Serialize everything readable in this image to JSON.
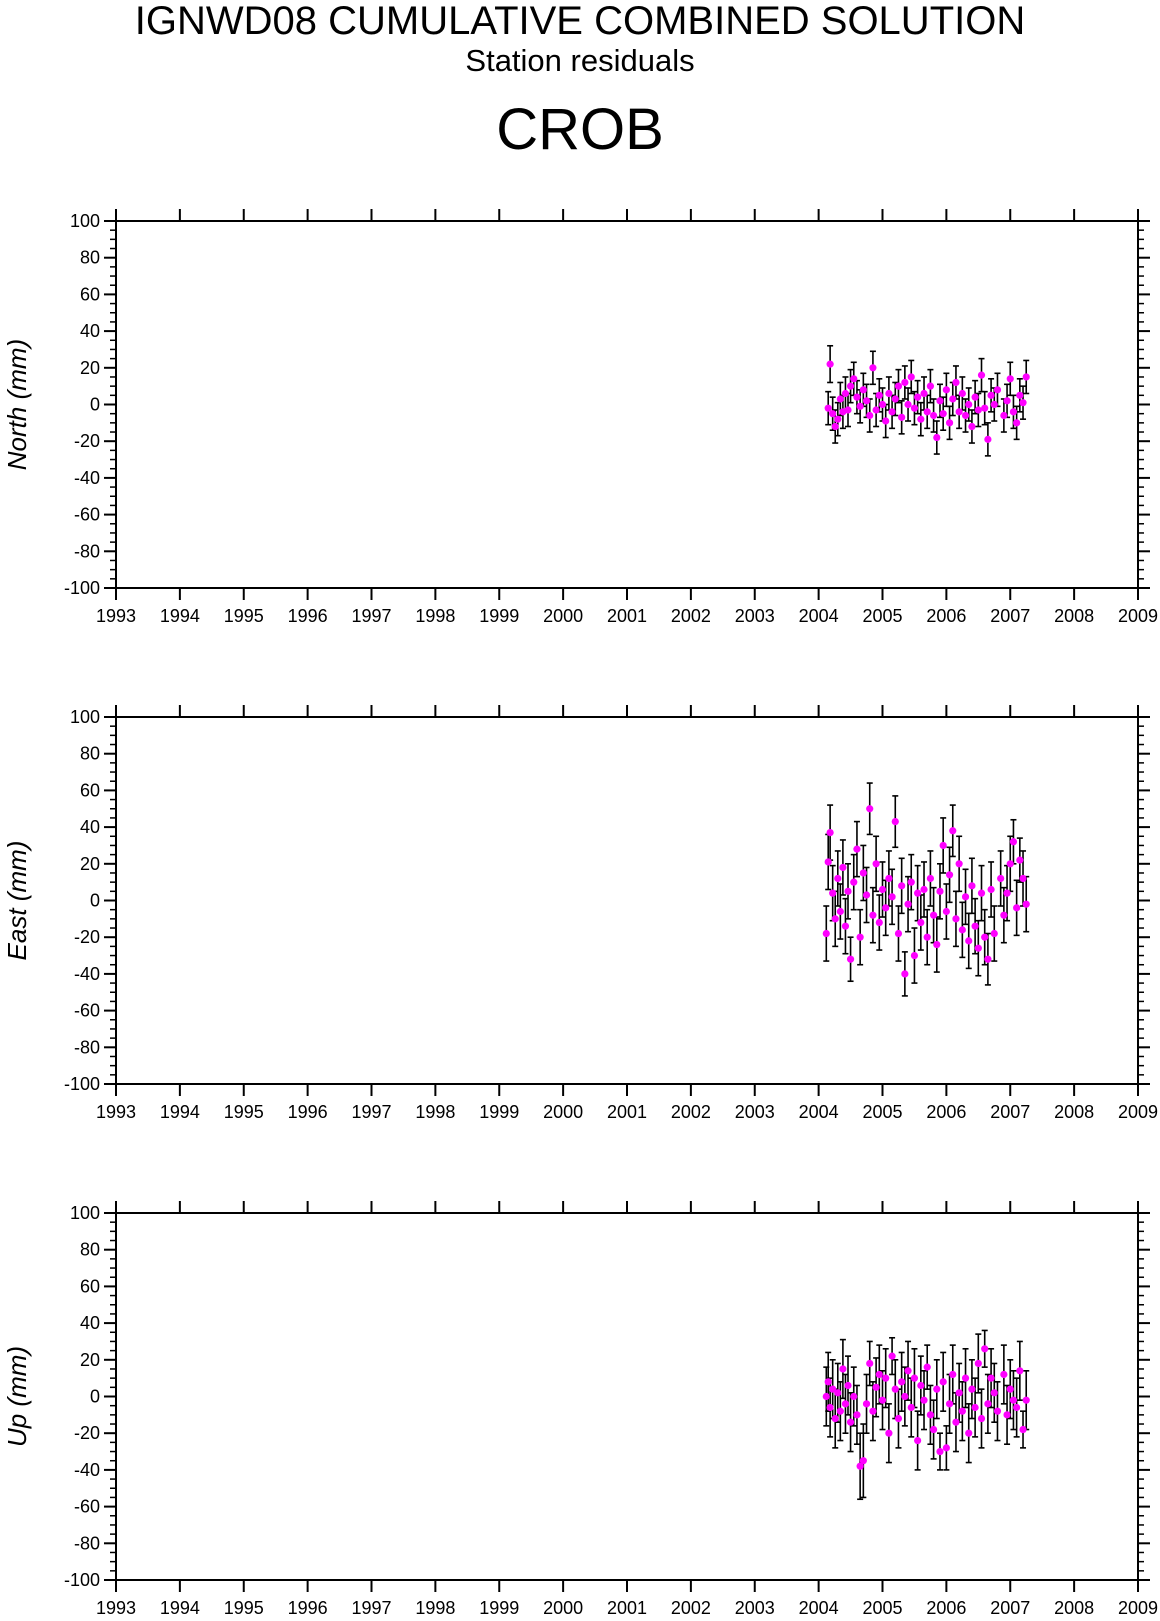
{
  "header": {
    "title": "IGNWD08 CUMULATIVE COMBINED SOLUTION",
    "subtitle": "Station residuals",
    "station": "CROB"
  },
  "colors": {
    "marker": "#ff00ff",
    "errorbar": "#000000",
    "axes": "#000000"
  },
  "chart_data": [
    {
      "type": "scatter",
      "component": "north",
      "ylabel": "North (mm)",
      "xlim": [
        1993,
        2009
      ],
      "ylim": [
        -100,
        100
      ],
      "x_ticks": [
        "1993",
        "1994",
        "1995",
        "1996",
        "1997",
        "1998",
        "1999",
        "2000",
        "2001",
        "2002",
        "2003",
        "2004",
        "2005",
        "2006",
        "2007",
        "2008",
        "2009"
      ],
      "y_ticks": [
        "100",
        "80",
        "60",
        "40",
        "20",
        "0",
        "-20",
        "-40",
        "-60",
        "-80",
        "-100"
      ],
      "errorbars": true,
      "grid": false,
      "series": [
        {
          "x": [
            2004.15,
            2004.18,
            2004.22,
            2004.26,
            2004.3,
            2004.34,
            2004.38,
            2004.42,
            2004.46,
            2004.5,
            2004.55,
            2004.6,
            2004.65,
            2004.7,
            2004.75,
            2004.8,
            2004.85,
            2004.9,
            2004.95,
            2005.0,
            2005.05,
            2005.1,
            2005.15,
            2005.2,
            2005.25,
            2005.3,
            2005.35,
            2005.4,
            2005.45,
            2005.5,
            2005.55,
            2005.6,
            2005.65,
            2005.7,
            2005.75,
            2005.8,
            2005.85,
            2005.9,
            2005.95,
            2006.0,
            2006.05,
            2006.1,
            2006.15,
            2006.2,
            2006.25,
            2006.3,
            2006.35,
            2006.4,
            2006.45,
            2006.5,
            2006.55,
            2006.6,
            2006.65,
            2006.7,
            2006.75,
            2006.8,
            2006.9,
            2006.95,
            2007.0,
            2007.05,
            2007.1,
            2007.15,
            2007.2,
            2007.25
          ],
          "y": [
            -2,
            22,
            -5,
            -12,
            -8,
            3,
            -4,
            6,
            -3,
            10,
            14,
            4,
            -1,
            8,
            2,
            -6,
            20,
            -3,
            5,
            0,
            -9,
            6,
            -4,
            3,
            10,
            -7,
            12,
            0,
            15,
            -2,
            4,
            -8,
            6,
            -4,
            10,
            -6,
            -18,
            2,
            -5,
            8,
            -10,
            3,
            12,
            -4,
            6,
            -6,
            0,
            -12,
            4,
            -3,
            16,
            -2,
            -19,
            5,
            0,
            8,
            -6,
            2,
            14,
            -4,
            -10,
            5,
            1,
            15
          ],
          "err": [
            9,
            10,
            9,
            9,
            9,
            9,
            9,
            9,
            9,
            9,
            9,
            9,
            9,
            9,
            9,
            9,
            9,
            9,
            9,
            9,
            9,
            9,
            9,
            9,
            9,
            9,
            9,
            9,
            9,
            9,
            9,
            9,
            9,
            9,
            9,
            9,
            9,
            9,
            9,
            9,
            9,
            9,
            9,
            9,
            9,
            9,
            9,
            9,
            9,
            9,
            9,
            9,
            9,
            9,
            9,
            9,
            9,
            9,
            9,
            9,
            9,
            9,
            9,
            9
          ]
        }
      ]
    },
    {
      "type": "scatter",
      "component": "east",
      "ylabel": "East (mm)",
      "xlim": [
        1993,
        2009
      ],
      "ylim": [
        -100,
        100
      ],
      "x_ticks": [
        "1993",
        "1994",
        "1995",
        "1996",
        "1997",
        "1998",
        "1999",
        "2000",
        "2001",
        "2002",
        "2003",
        "2004",
        "2005",
        "2006",
        "2007",
        "2008",
        "2009"
      ],
      "y_ticks": [
        "100",
        "80",
        "60",
        "40",
        "20",
        "0",
        "-20",
        "-40",
        "-60",
        "-80",
        "-100"
      ],
      "errorbars": true,
      "grid": false,
      "series": [
        {
          "x": [
            2004.12,
            2004.15,
            2004.18,
            2004.22,
            2004.26,
            2004.3,
            2004.34,
            2004.38,
            2004.42,
            2004.46,
            2004.5,
            2004.55,
            2004.6,
            2004.65,
            2004.7,
            2004.75,
            2004.8,
            2004.85,
            2004.9,
            2004.95,
            2005.0,
            2005.05,
            2005.1,
            2005.15,
            2005.2,
            2005.25,
            2005.3,
            2005.35,
            2005.4,
            2005.45,
            2005.5,
            2005.55,
            2005.6,
            2005.65,
            2005.7,
            2005.75,
            2005.8,
            2005.85,
            2005.9,
            2005.95,
            2006.0,
            2006.05,
            2006.1,
            2006.15,
            2006.2,
            2006.25,
            2006.3,
            2006.35,
            2006.4,
            2006.45,
            2006.5,
            2006.55,
            2006.6,
            2006.65,
            2006.7,
            2006.75,
            2006.85,
            2006.9,
            2006.95,
            2007.0,
            2007.05,
            2007.1,
            2007.15,
            2007.2,
            2007.25
          ],
          "y": [
            -18,
            21,
            37,
            4,
            -10,
            12,
            -6,
            18,
            -14,
            5,
            -32,
            10,
            28,
            -20,
            15,
            3,
            50,
            -8,
            20,
            -12,
            6,
            -4,
            12,
            2,
            43,
            -18,
            8,
            -40,
            -2,
            10,
            -30,
            4,
            -12,
            6,
            -20,
            12,
            -8,
            -24,
            5,
            30,
            -6,
            14,
            38,
            -10,
            20,
            -16,
            2,
            -22,
            8,
            -14,
            -26,
            4,
            -20,
            -32,
            6,
            -18,
            12,
            -8,
            4,
            20,
            32,
            -4,
            22,
            12,
            -2
          ],
          "err": [
            15,
            15,
            15,
            15,
            15,
            15,
            15,
            15,
            15,
            15,
            12,
            15,
            15,
            15,
            15,
            15,
            14,
            15,
            15,
            15,
            15,
            15,
            15,
            15,
            14,
            15,
            15,
            12,
            15,
            15,
            15,
            15,
            15,
            15,
            15,
            15,
            15,
            15,
            15,
            15,
            15,
            15,
            14,
            15,
            15,
            15,
            15,
            15,
            15,
            15,
            15,
            15,
            15,
            14,
            15,
            15,
            15,
            15,
            15,
            15,
            12,
            15,
            12,
            15,
            15
          ]
        }
      ]
    },
    {
      "type": "scatter",
      "component": "up",
      "ylabel": "Up (mm)",
      "xlim": [
        1993,
        2009
      ],
      "ylim": [
        -100,
        100
      ],
      "x_ticks": [
        "1993",
        "1994",
        "1995",
        "1996",
        "1997",
        "1998",
        "1999",
        "2000",
        "2001",
        "2002",
        "2003",
        "2004",
        "2005",
        "2006",
        "2007",
        "2008",
        "2009"
      ],
      "y_ticks": [
        "100",
        "80",
        "60",
        "40",
        "20",
        "0",
        "-20",
        "-40",
        "-60",
        "-80",
        "-100"
      ],
      "errorbars": true,
      "grid": false,
      "series": [
        {
          "x": [
            2004.12,
            2004.15,
            2004.18,
            2004.22,
            2004.26,
            2004.3,
            2004.34,
            2004.38,
            2004.42,
            2004.46,
            2004.5,
            2004.55,
            2004.6,
            2004.65,
            2004.7,
            2004.75,
            2004.8,
            2004.85,
            2004.9,
            2004.95,
            2005.0,
            2005.05,
            2005.1,
            2005.15,
            2005.2,
            2005.25,
            2005.3,
            2005.35,
            2005.4,
            2005.45,
            2005.5,
            2005.55,
            2005.6,
            2005.65,
            2005.7,
            2005.75,
            2005.8,
            2005.85,
            2005.9,
            2005.95,
            2006.0,
            2006.05,
            2006.1,
            2006.15,
            2006.2,
            2006.25,
            2006.3,
            2006.35,
            2006.4,
            2006.45,
            2006.5,
            2006.55,
            2006.6,
            2006.65,
            2006.7,
            2006.75,
            2006.8,
            2006.9,
            2006.95,
            2007.0,
            2007.05,
            2007.1,
            2007.15,
            2007.2,
            2007.25
          ],
          "y": [
            0,
            8,
            -6,
            4,
            -12,
            2,
            -8,
            15,
            -4,
            6,
            -14,
            0,
            -10,
            -38,
            -35,
            -4,
            18,
            -8,
            5,
            12,
            -2,
            10,
            -20,
            22,
            4,
            -12,
            8,
            0,
            14,
            -6,
            10,
            -24,
            6,
            -2,
            16,
            -10,
            -18,
            4,
            -30,
            8,
            -28,
            -4,
            12,
            -14,
            2,
            -8,
            10,
            -20,
            4,
            -6,
            18,
            -12,
            26,
            -4,
            10,
            2,
            -8,
            12,
            -10,
            4,
            -2,
            -6,
            14,
            -18,
            -2
          ],
          "err": [
            16,
            16,
            16,
            16,
            16,
            16,
            16,
            16,
            16,
            16,
            16,
            16,
            16,
            18,
            20,
            16,
            12,
            16,
            16,
            16,
            16,
            16,
            16,
            10,
            16,
            16,
            16,
            16,
            16,
            16,
            16,
            16,
            16,
            16,
            12,
            16,
            16,
            16,
            10,
            16,
            12,
            16,
            16,
            16,
            16,
            16,
            16,
            16,
            16,
            16,
            16,
            16,
            10,
            16,
            16,
            16,
            16,
            16,
            16,
            16,
            16,
            16,
            16,
            10,
            16
          ]
        }
      ]
    }
  ]
}
